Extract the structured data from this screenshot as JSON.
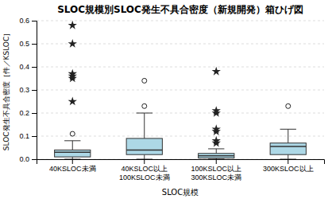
{
  "chart_data": {
    "type": "box",
    "title": "SLOC規模別SLOC発生不具合密度（新規開発）箱ひげ図",
    "x_label": "SLOC規模",
    "y_label": "SLOC発生不具合密度［件／KSLOC］",
    "categories": [
      "40KSLOC未満",
      "40KSLOC以上\n100KSLOC未満",
      "100KSLOC以上\n300KSLOC未満",
      "300KSLOC以上"
    ],
    "boxes": [
      {
        "q1": 0.01,
        "median": 0.03,
        "q3": 0.04,
        "whisker_low": 0.0,
        "whisker_high": 0.08,
        "fliers_circle": [
          0.11
        ],
        "fliers_star": [
          0.25,
          0.35,
          0.36,
          0.37,
          0.5,
          0.58
        ]
      },
      {
        "q1": 0.02,
        "median": 0.04,
        "q3": 0.09,
        "whisker_low": 0.0,
        "whisker_high": 0.2,
        "fliers_circle": [
          0.23,
          0.34
        ],
        "fliers_star": []
      },
      {
        "q1": 0.005,
        "median": 0.015,
        "q3": 0.025,
        "whisker_low": 0.0,
        "whisker_high": 0.045,
        "fliers_circle": [],
        "fliers_star": [
          0.07,
          0.08,
          0.12,
          0.13,
          0.2,
          0.21,
          0.38
        ]
      },
      {
        "q1": 0.02,
        "median": 0.055,
        "q3": 0.07,
        "whisker_low": 0.0,
        "whisker_high": 0.13,
        "fliers_circle": [
          0.23
        ],
        "fliers_star": []
      }
    ],
    "color": "#add8e6",
    "ylim": [
      0.0,
      0.6
    ],
    "yticks": [
      {
        "value": 0.0,
        "label": "0.0"
      },
      0.1,
      0.2,
      0.3,
      0.4,
      0.5,
      0.6
    ],
    "grid": true
  }
}
